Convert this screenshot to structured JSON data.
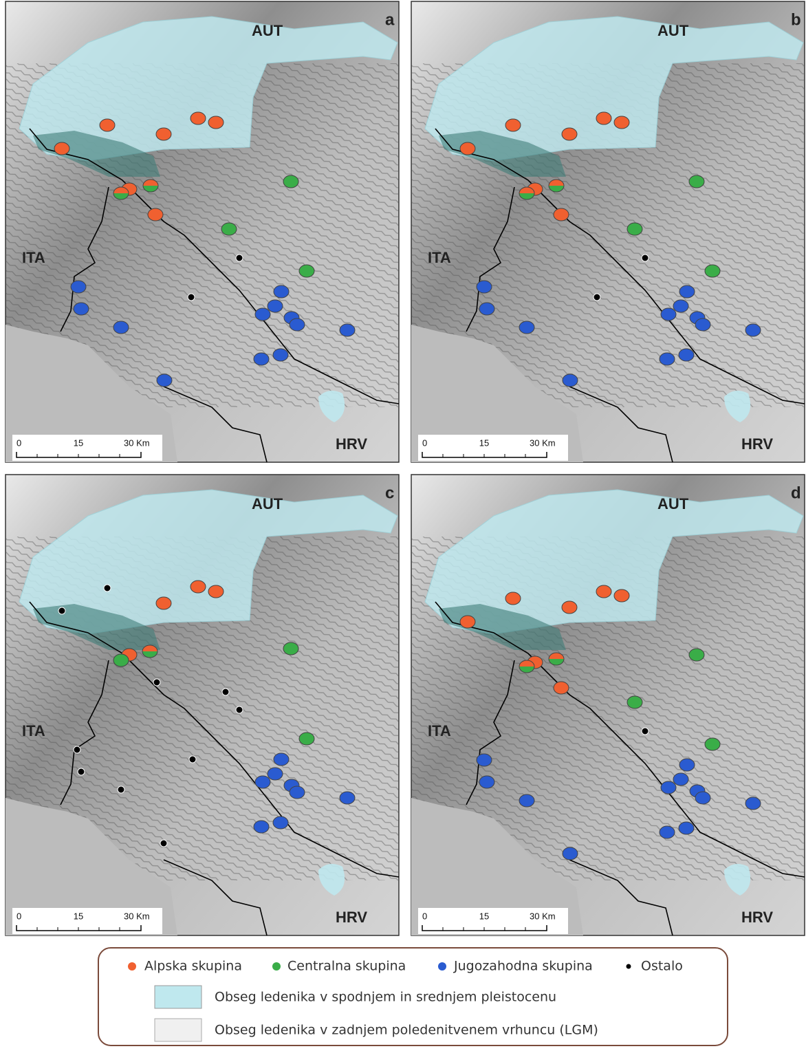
{
  "panels": [
    {
      "label": "a",
      "countries": [
        "AUT",
        "ITA",
        "HRV"
      ],
      "scale": [
        "0",
        "15",
        "30 Km"
      ]
    },
    {
      "label": "b",
      "countries": [
        "AUT",
        "ITA",
        "HRV"
      ],
      "scale": [
        "0",
        "15",
        "30 Km"
      ]
    },
    {
      "label": "c",
      "countries": [
        "AUT",
        "ITA",
        "HRV"
      ],
      "scale": [
        "0",
        "15",
        "30 Km"
      ]
    },
    {
      "label": "d",
      "countries": [
        "AUT",
        "ITA",
        "HRV"
      ],
      "scale": [
        "0",
        "15",
        "30 Km"
      ]
    }
  ],
  "legend": {
    "groups": [
      "Alpska skupina",
      "Centralna skupina",
      "Jugozahodna skupina",
      "Ostalo"
    ],
    "areas": [
      "Obseg ledenika v spodnjem in srednjem pleistocenu",
      "Obseg ledenika v zadnjem poledenitvenem vrhuncu (LGM)"
    ]
  }
}
